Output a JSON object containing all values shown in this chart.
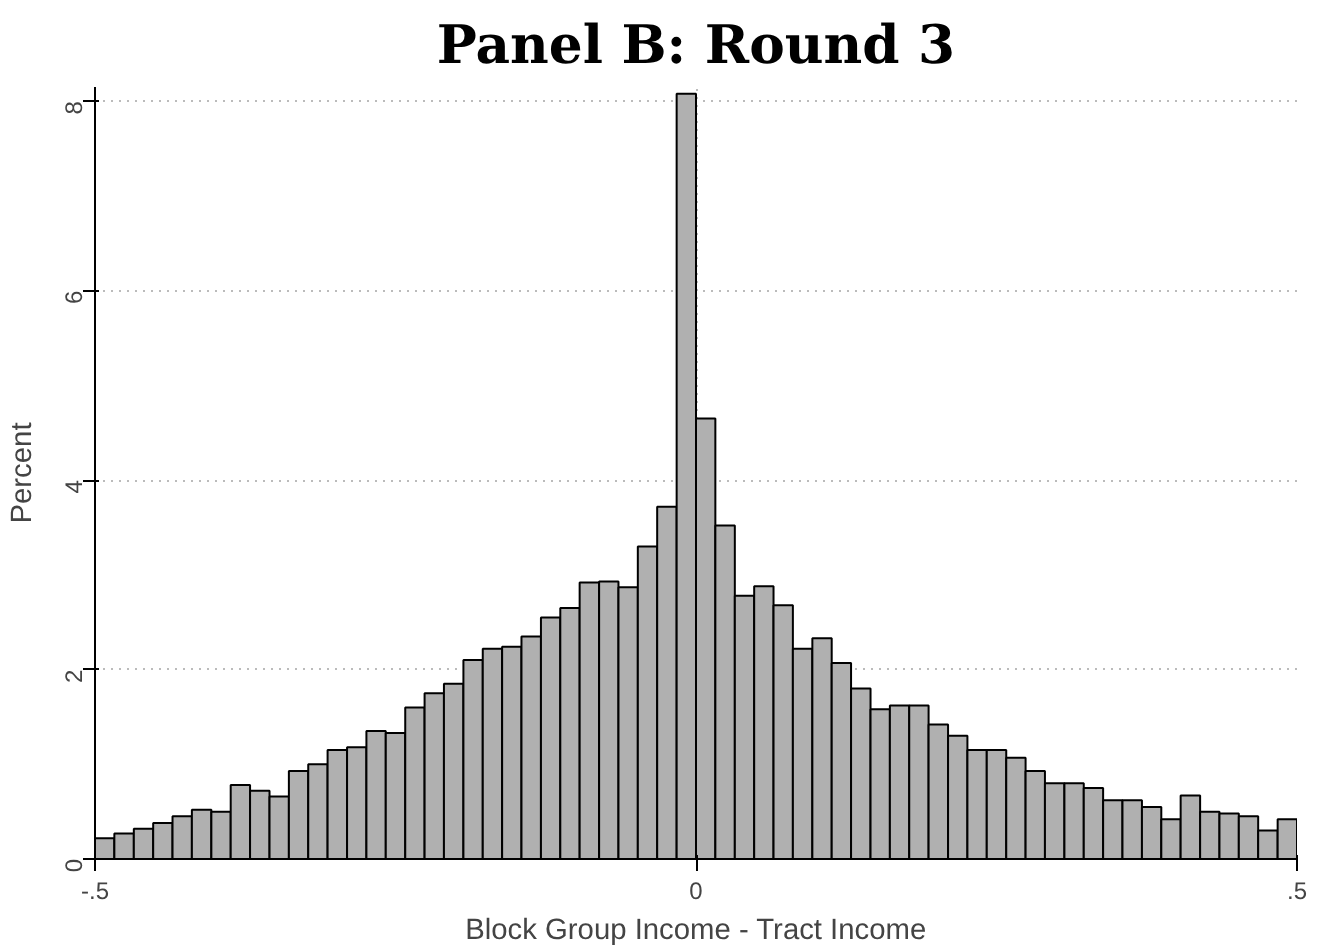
{
  "chart_data": {
    "type": "histogram",
    "title": "Panel B: Round 3",
    "xlabel": "Block Group Income - Tract Income",
    "ylabel": "Percent",
    "color": "#b0b0b0",
    "bins": [
      -0.5,
      -0.4839,
      -0.4677,
      -0.4516,
      -0.4355,
      -0.4194,
      -0.4032,
      -0.3871,
      -0.371,
      -0.3548,
      -0.3387,
      -0.3226,
      -0.3065,
      -0.2903,
      -0.2742,
      -0.2581,
      -0.2419,
      -0.2258,
      -0.2097,
      -0.1935,
      -0.1774,
      -0.1613,
      -0.1452,
      -0.129,
      -0.1129,
      -0.0968,
      -0.0806,
      -0.0645,
      -0.0484,
      -0.0323,
      -0.0161,
      0,
      0.0161,
      0.0323,
      0.0484,
      0.0645,
      0.0806,
      0.0968,
      0.1129,
      0.129,
      0.1452,
      0.1613,
      0.1774,
      0.1935,
      0.2097,
      0.2258,
      0.2419,
      0.2581,
      0.2742,
      0.2903,
      0.3065,
      0.3226,
      0.3387,
      0.3548,
      0.371,
      0.3871,
      0.4032,
      0.4194,
      0.4355,
      0.4516,
      0.4677,
      0.4839,
      0.5
    ],
    "values": [
      0.22,
      0.27,
      0.32,
      0.38,
      0.45,
      0.52,
      0.5,
      0.78,
      0.72,
      0.66,
      0.93,
      1.0,
      1.15,
      1.18,
      1.35,
      1.33,
      1.6,
      1.75,
      1.85,
      2.1,
      2.22,
      2.24,
      2.35,
      2.55,
      2.65,
      2.92,
      2.93,
      2.87,
      3.3,
      3.72,
      8.08,
      4.65,
      3.52,
      2.78,
      2.88,
      2.68,
      2.22,
      2.33,
      2.07,
      1.8,
      1.58,
      1.62,
      1.62,
      1.42,
      1.3,
      1.15,
      1.15,
      1.07,
      0.93,
      0.8,
      0.8,
      0.75,
      0.62,
      0.62,
      0.55,
      0.42,
      0.67,
      0.5,
      0.48,
      0.45,
      0.3,
      0.42
    ],
    "xlim": [
      -0.5,
      0.5
    ],
    "ylim": [
      0,
      8.15
    ],
    "xticks": [
      {
        "value": -0.5,
        "label": "-.5"
      },
      0,
      {
        "value": 0.5,
        "label": ".5"
      }
    ],
    "yticks": [
      0,
      2,
      4,
      6,
      8
    ],
    "grid": true
  }
}
